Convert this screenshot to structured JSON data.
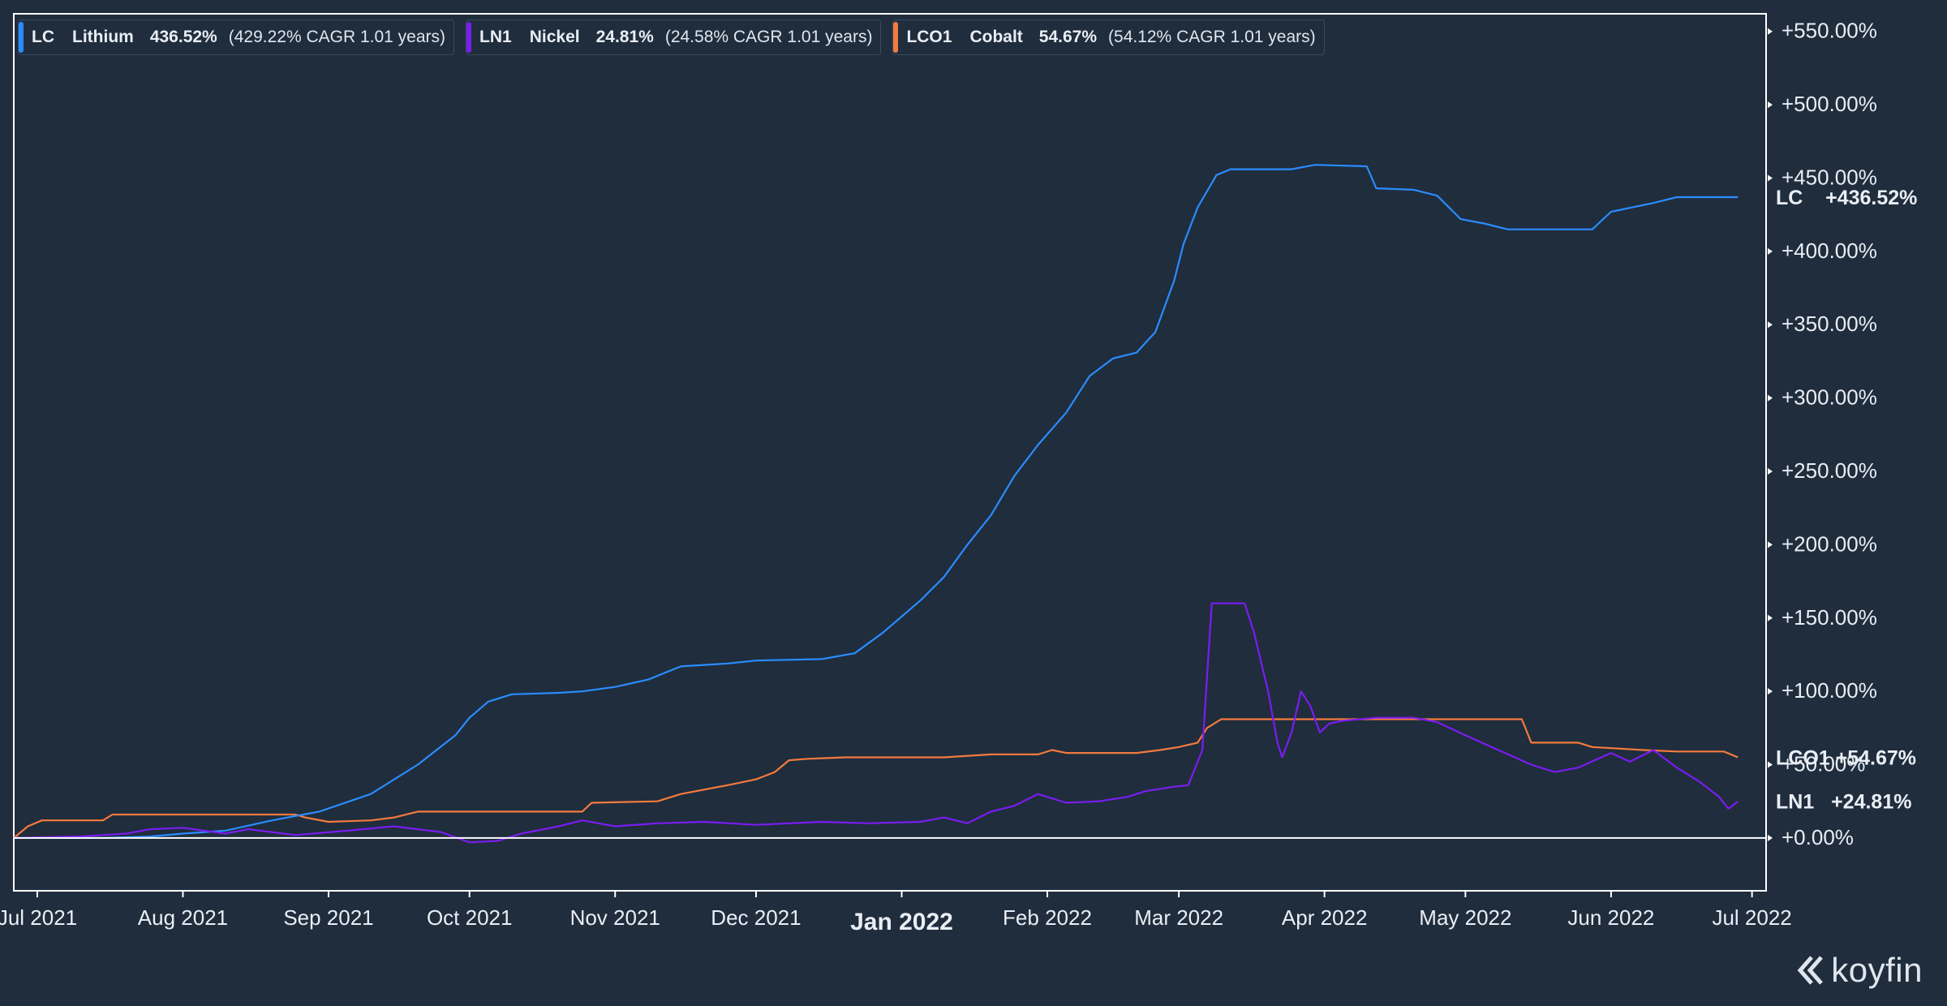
{
  "legend": [
    {
      "ticker": "LC",
      "name": "Lithium",
      "pct": "436.52%",
      "cagr": "(429.22% CAGR 1.01 years)"
    },
    {
      "ticker": "LN1",
      "name": "Nickel",
      "pct": "24.81%",
      "cagr": "(24.58% CAGR 1.01 years)"
    },
    {
      "ticker": "LCO1",
      "name": "Cobalt",
      "pct": "54.67%",
      "cagr": "(54.12% CAGR 1.01 years)"
    }
  ],
  "brand": "koyfin",
  "colors": {
    "background": "#1f2d3d",
    "axis": "#ffffff",
    "text": "#e9eef4",
    "LC": "#2b8cff",
    "LN1": "#7b1cf0",
    "LCO1": "#f47a3d"
  },
  "chart_data": {
    "type": "line",
    "title": "",
    "xlabel": "",
    "ylabel": "",
    "x_ticks": [
      {
        "date": "2021-07-01",
        "label": "Jul 2021"
      },
      {
        "date": "2021-08-01",
        "label": "Aug 2021"
      },
      {
        "date": "2021-09-01",
        "label": "Sep 2021"
      },
      {
        "date": "2021-10-01",
        "label": "Oct 2021"
      },
      {
        "date": "2021-11-01",
        "label": "Nov 2021"
      },
      {
        "date": "2021-12-01",
        "label": "Dec 2021"
      },
      {
        "date": "2022-01-01",
        "label": "Jan 2022",
        "major": true
      },
      {
        "date": "2022-02-01",
        "label": "Feb 2022"
      },
      {
        "date": "2022-03-01",
        "label": "Mar 2022"
      },
      {
        "date": "2022-04-01",
        "label": "Apr 2022"
      },
      {
        "date": "2022-05-01",
        "label": "May 2022"
      },
      {
        "date": "2022-06-01",
        "label": "Jun 2022"
      },
      {
        "date": "2022-07-01",
        "label": "Jul 2022"
      }
    ],
    "xlim": [
      "2021-06-26",
      "2022-07-04"
    ],
    "y_ticks": [
      0,
      50,
      100,
      150,
      200,
      250,
      300,
      350,
      400,
      450,
      500,
      550
    ],
    "y_tick_labels": [
      "+0.00%",
      "+50.00%",
      "+100.00%",
      "+150.00%",
      "+200.00%",
      "+250.00%",
      "+300.00%",
      "+350.00%",
      "+400.00%",
      "+450.00%",
      "+500.00%",
      "+550.00%"
    ],
    "ylim": [
      -36,
      562
    ],
    "unit": "%",
    "zero_line": true,
    "grid": false,
    "legend_position": "top-left",
    "series": [
      {
        "name": "LC",
        "end_label": "LC    +436.52%",
        "points": [
          [
            "2021-06-26",
            0
          ],
          [
            "2021-07-15",
            0
          ],
          [
            "2021-07-25",
            1
          ],
          [
            "2021-08-01",
            3
          ],
          [
            "2021-08-10",
            5
          ],
          [
            "2021-08-20",
            12
          ],
          [
            "2021-08-30",
            18
          ],
          [
            "2021-09-10",
            30
          ],
          [
            "2021-09-20",
            50
          ],
          [
            "2021-09-28",
            70
          ],
          [
            "2021-10-01",
            82
          ],
          [
            "2021-10-05",
            93
          ],
          [
            "2021-10-10",
            98
          ],
          [
            "2021-10-20",
            99
          ],
          [
            "2021-10-25",
            100
          ],
          [
            "2021-11-01",
            103
          ],
          [
            "2021-11-08",
            108
          ],
          [
            "2021-11-15",
            117
          ],
          [
            "2021-11-25",
            119
          ],
          [
            "2021-12-01",
            121
          ],
          [
            "2021-12-15",
            122
          ],
          [
            "2021-12-22",
            126
          ],
          [
            "2021-12-28",
            140
          ],
          [
            "2022-01-05",
            162
          ],
          [
            "2022-01-10",
            178
          ],
          [
            "2022-01-15",
            200
          ],
          [
            "2022-01-20",
            220
          ],
          [
            "2022-01-25",
            247
          ],
          [
            "2022-01-30",
            268
          ],
          [
            "2022-02-05",
            290
          ],
          [
            "2022-02-10",
            315
          ],
          [
            "2022-02-15",
            327
          ],
          [
            "2022-02-20",
            331
          ],
          [
            "2022-02-24",
            345
          ],
          [
            "2022-02-28",
            380
          ],
          [
            "2022-03-02",
            405
          ],
          [
            "2022-03-05",
            430
          ],
          [
            "2022-03-09",
            452
          ],
          [
            "2022-03-12",
            456
          ],
          [
            "2022-03-25",
            456
          ],
          [
            "2022-03-30",
            459
          ],
          [
            "2022-04-10",
            458
          ],
          [
            "2022-04-12",
            443
          ],
          [
            "2022-04-20",
            442
          ],
          [
            "2022-04-25",
            438
          ],
          [
            "2022-04-30",
            422
          ],
          [
            "2022-05-05",
            419
          ],
          [
            "2022-05-10",
            415
          ],
          [
            "2022-05-28",
            415
          ],
          [
            "2022-06-01",
            427
          ],
          [
            "2022-06-10",
            433
          ],
          [
            "2022-06-15",
            437
          ],
          [
            "2022-06-28",
            437
          ]
        ]
      },
      {
        "name": "LN1",
        "end_label": "LN1   +24.81%",
        "points": [
          [
            "2021-06-26",
            0
          ],
          [
            "2021-07-10",
            1
          ],
          [
            "2021-07-20",
            3
          ],
          [
            "2021-07-25",
            6
          ],
          [
            "2021-08-01",
            7
          ],
          [
            "2021-08-10",
            3
          ],
          [
            "2021-08-15",
            6
          ],
          [
            "2021-08-25",
            2
          ],
          [
            "2021-09-05",
            5
          ],
          [
            "2021-09-15",
            8
          ],
          [
            "2021-09-25",
            4
          ],
          [
            "2021-10-01",
            -3
          ],
          [
            "2021-10-07",
            -2
          ],
          [
            "2021-10-12",
            3
          ],
          [
            "2021-10-20",
            8
          ],
          [
            "2021-10-25",
            12
          ],
          [
            "2021-11-01",
            8
          ],
          [
            "2021-11-10",
            10
          ],
          [
            "2021-11-20",
            11
          ],
          [
            "2021-12-01",
            9
          ],
          [
            "2021-12-15",
            11
          ],
          [
            "2021-12-25",
            10
          ],
          [
            "2022-01-05",
            11
          ],
          [
            "2022-01-10",
            14
          ],
          [
            "2022-01-15",
            10
          ],
          [
            "2022-01-20",
            18
          ],
          [
            "2022-01-25",
            22
          ],
          [
            "2022-01-30",
            30
          ],
          [
            "2022-02-05",
            24
          ],
          [
            "2022-02-12",
            25
          ],
          [
            "2022-02-18",
            28
          ],
          [
            "2022-02-22",
            32
          ],
          [
            "2022-02-28",
            35
          ],
          [
            "2022-03-03",
            36
          ],
          [
            "2022-03-06",
            60
          ],
          [
            "2022-03-08",
            160
          ],
          [
            "2022-03-15",
            160
          ],
          [
            "2022-03-17",
            140
          ],
          [
            "2022-03-20",
            100
          ],
          [
            "2022-03-22",
            65
          ],
          [
            "2022-03-23",
            55
          ],
          [
            "2022-03-25",
            72
          ],
          [
            "2022-03-27",
            100
          ],
          [
            "2022-03-29",
            90
          ],
          [
            "2022-03-31",
            72
          ],
          [
            "2022-04-02",
            78
          ],
          [
            "2022-04-05",
            80
          ],
          [
            "2022-04-12",
            82
          ],
          [
            "2022-04-20",
            82
          ],
          [
            "2022-04-25",
            79
          ],
          [
            "2022-05-01",
            70
          ],
          [
            "2022-05-08",
            60
          ],
          [
            "2022-05-15",
            50
          ],
          [
            "2022-05-20",
            45
          ],
          [
            "2022-05-25",
            48
          ],
          [
            "2022-06-01",
            58
          ],
          [
            "2022-06-05",
            52
          ],
          [
            "2022-06-10",
            60
          ],
          [
            "2022-06-15",
            48
          ],
          [
            "2022-06-20",
            38
          ],
          [
            "2022-06-24",
            28
          ],
          [
            "2022-06-26",
            20
          ],
          [
            "2022-06-28",
            25
          ]
        ]
      },
      {
        "name": "LCO1",
        "end_label": "LCO1 +54.67%",
        "points": [
          [
            "2021-06-26",
            0
          ],
          [
            "2021-06-29",
            8
          ],
          [
            "2021-07-02",
            12
          ],
          [
            "2021-07-15",
            12
          ],
          [
            "2021-07-17",
            16
          ],
          [
            "2021-08-25",
            16
          ],
          [
            "2021-08-27",
            14
          ],
          [
            "2021-09-01",
            11
          ],
          [
            "2021-09-10",
            12
          ],
          [
            "2021-09-15",
            14
          ],
          [
            "2021-09-20",
            18
          ],
          [
            "2021-10-25",
            18
          ],
          [
            "2021-10-27",
            24
          ],
          [
            "2021-11-10",
            25
          ],
          [
            "2021-11-15",
            30
          ],
          [
            "2021-11-25",
            36
          ],
          [
            "2021-12-01",
            40
          ],
          [
            "2021-12-05",
            45
          ],
          [
            "2021-12-08",
            53
          ],
          [
            "2021-12-12",
            54
          ],
          [
            "2021-12-20",
            55
          ],
          [
            "2022-01-10",
            55
          ],
          [
            "2022-01-20",
            57
          ],
          [
            "2022-01-30",
            57
          ],
          [
            "2022-02-02",
            60
          ],
          [
            "2022-02-05",
            58
          ],
          [
            "2022-02-20",
            58
          ],
          [
            "2022-02-25",
            60
          ],
          [
            "2022-03-01",
            62
          ],
          [
            "2022-03-05",
            65
          ],
          [
            "2022-03-07",
            75
          ],
          [
            "2022-03-10",
            81
          ],
          [
            "2022-05-13",
            81
          ],
          [
            "2022-05-15",
            65
          ],
          [
            "2022-05-25",
            65
          ],
          [
            "2022-05-28",
            62
          ],
          [
            "2022-06-08",
            60
          ],
          [
            "2022-06-15",
            59
          ],
          [
            "2022-06-25",
            59
          ],
          [
            "2022-06-28",
            55
          ]
        ]
      }
    ]
  }
}
